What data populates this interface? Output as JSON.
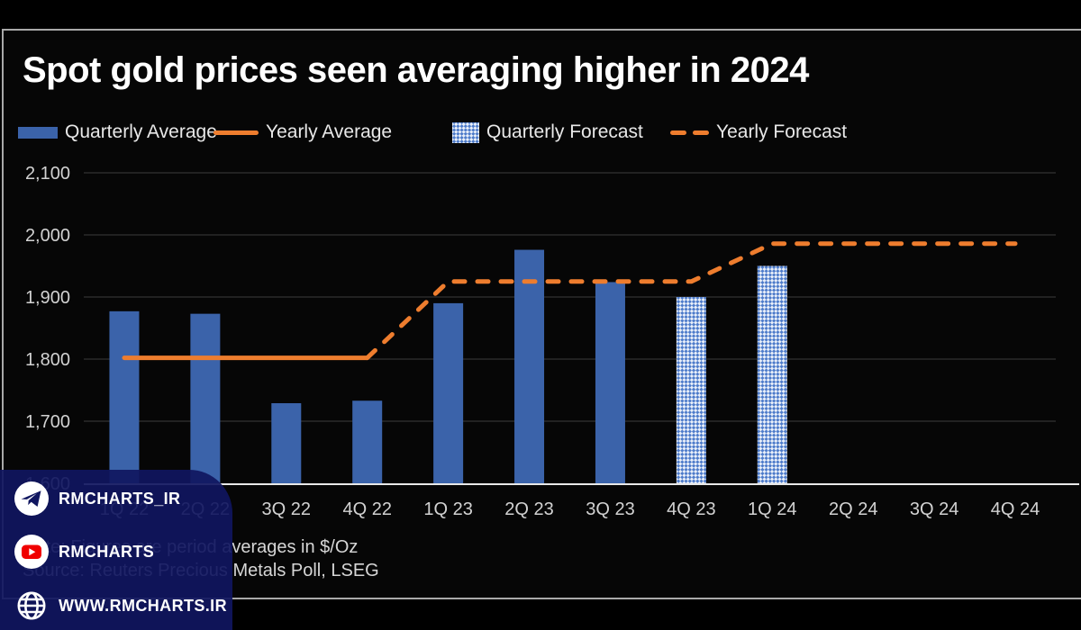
{
  "title": "Spot gold prices seen averaging higher in 2024",
  "legend": [
    {
      "label": "Quarterly Average",
      "swatch": "bar-solid"
    },
    {
      "label": "Yearly Average",
      "swatch": "line-solid"
    },
    {
      "label": "Quarterly Forecast",
      "swatch": "bar-hatched"
    },
    {
      "label": "Yearly Forecast",
      "swatch": "line-dashed"
    }
  ],
  "notes": {
    "line1": "Note: Figures are period averages in $/Oz",
    "line2": "Source: Reuters Precious Metals Poll, LSEG"
  },
  "watermark": {
    "items": [
      {
        "icon": "telegram-icon",
        "label": "RMCHARTS_IR"
      },
      {
        "icon": "youtube-icon",
        "label": "RMCHARTS"
      },
      {
        "icon": "globe-icon",
        "label": "WWW.RMCHARTS.IR"
      }
    ]
  },
  "colors": {
    "bar_blue": "#3b63aa",
    "forecast_blue": "#4d7bca",
    "orange": "#ee7d2e",
    "axis_text": "#d2d2d2",
    "grid": "#3c3c3c",
    "axis_line": "#e8e8e8",
    "card_navy": "#101660",
    "youtube_red": "#f00000"
  },
  "chart_data": {
    "type": "bar",
    "title": "Spot gold prices seen averaging higher in 2024",
    "xlabel": "",
    "ylabel": "",
    "unit": "$/Oz",
    "ylim": [
      1600,
      2100
    ],
    "grid": true,
    "legend_position": "top",
    "y_ticks": [
      {
        "value": 2100,
        "label": "2,100"
      },
      {
        "value": 2000,
        "label": "2,000"
      },
      {
        "value": 1900,
        "label": "1,900"
      },
      {
        "value": 1800,
        "label": "1,800"
      },
      {
        "value": 1700,
        "label": "1,700"
      },
      {
        "value": 1600,
        "label": "1,600"
      }
    ],
    "categories": [
      "1Q 22",
      "2Q 22",
      "3Q 22",
      "4Q 22",
      "1Q 23",
      "2Q 23",
      "3Q 23",
      "4Q 23",
      "1Q 24",
      "2Q 24",
      "3Q 24",
      "4Q 24"
    ],
    "series": [
      {
        "name": "Quarterly Average",
        "type": "bar",
        "pattern": "solid",
        "color": "#3b63aa",
        "values": [
          1877,
          1873,
          1729,
          1733,
          1890,
          1976,
          1924,
          null,
          null,
          null,
          null,
          null
        ]
      },
      {
        "name": "Quarterly Forecast",
        "type": "bar",
        "pattern": "hatched",
        "color": "#4d7bca",
        "values": [
          null,
          null,
          null,
          null,
          null,
          null,
          null,
          1900,
          1950,
          null,
          null,
          null
        ]
      },
      {
        "name": "Yearly Average",
        "type": "line",
        "style": "solid",
        "color": "#ee7d2e",
        "values": [
          1802,
          1802,
          1802,
          1802,
          null,
          null,
          null,
          null,
          null,
          null,
          null,
          null
        ]
      },
      {
        "name": "Yearly Forecast",
        "type": "line",
        "style": "dashed",
        "color": "#ee7d2e",
        "values": [
          null,
          null,
          null,
          1802,
          1925,
          1925,
          1925,
          1925,
          1986,
          1986,
          1986,
          1986
        ]
      }
    ]
  }
}
